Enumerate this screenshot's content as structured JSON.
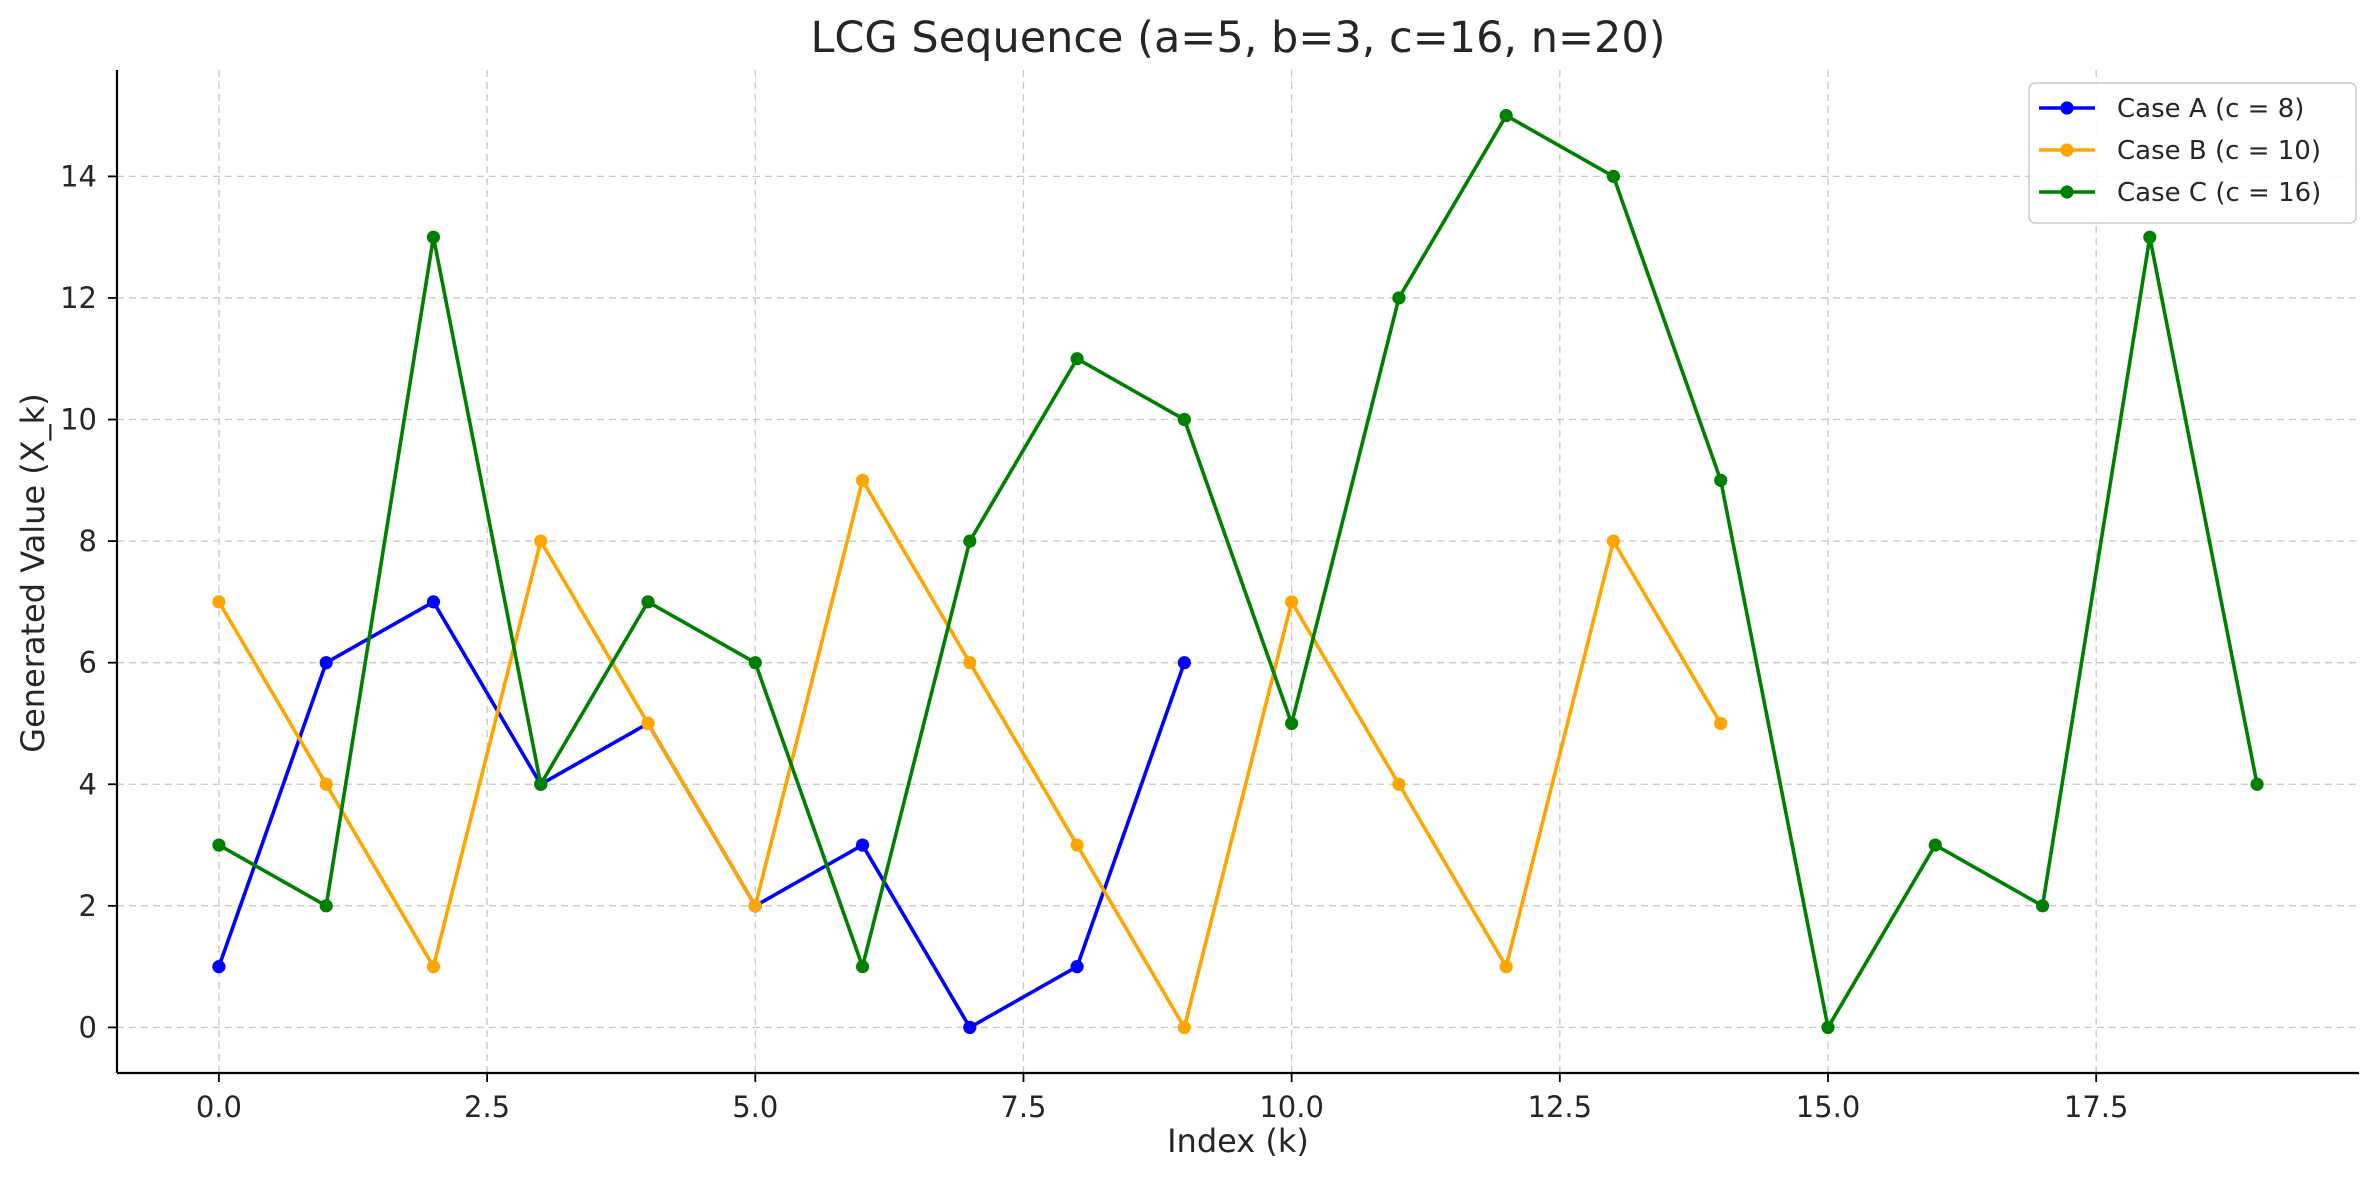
{
  "chart_data": {
    "type": "line",
    "title": "LCG Sequence (a=5, b=3, c=16, n=20)",
    "xlabel": "Index (k)",
    "ylabel": "Generated Value (X_k)",
    "xlim": [
      -0.95,
      19.95
    ],
    "ylim": [
      -0.75,
      15.75
    ],
    "xticks": [
      0.0,
      2.5,
      5.0,
      7.5,
      10.0,
      12.5,
      15.0,
      17.5
    ],
    "xtick_labels": [
      "0.0",
      "2.5",
      "5.0",
      "7.5",
      "10.0",
      "12.5",
      "15.0",
      "17.5"
    ],
    "yticks": [
      0,
      2,
      4,
      6,
      8,
      10,
      12,
      14
    ],
    "ytick_labels": [
      "0",
      "2",
      "4",
      "6",
      "8",
      "10",
      "12",
      "14"
    ],
    "grid": true,
    "legend_position": "top-right",
    "series": [
      {
        "name": "Case A (c = 8)",
        "color": "#0000ff",
        "x": [
          0,
          1,
          2,
          3,
          4,
          5,
          6,
          7,
          8,
          9
        ],
        "y": [
          1,
          6,
          7,
          4,
          5,
          2,
          3,
          0,
          1,
          6
        ]
      },
      {
        "name": "Case B (c = 10)",
        "color": "#ffa500",
        "x": [
          0,
          1,
          2,
          3,
          4,
          5,
          6,
          7,
          8,
          9,
          10,
          11,
          12,
          13,
          14
        ],
        "y": [
          7,
          4,
          1,
          8,
          5,
          2,
          9,
          6,
          3,
          0,
          7,
          4,
          1,
          8,
          5
        ]
      },
      {
        "name": "Case C (c = 16)",
        "color": "#008000",
        "x": [
          0,
          1,
          2,
          3,
          4,
          5,
          6,
          7,
          8,
          9,
          10,
          11,
          12,
          13,
          14,
          15,
          16,
          17,
          18,
          19
        ],
        "y": [
          3,
          2,
          13,
          4,
          7,
          6,
          1,
          8,
          11,
          10,
          5,
          12,
          15,
          14,
          9,
          0,
          3,
          2,
          13,
          4
        ]
      }
    ]
  }
}
